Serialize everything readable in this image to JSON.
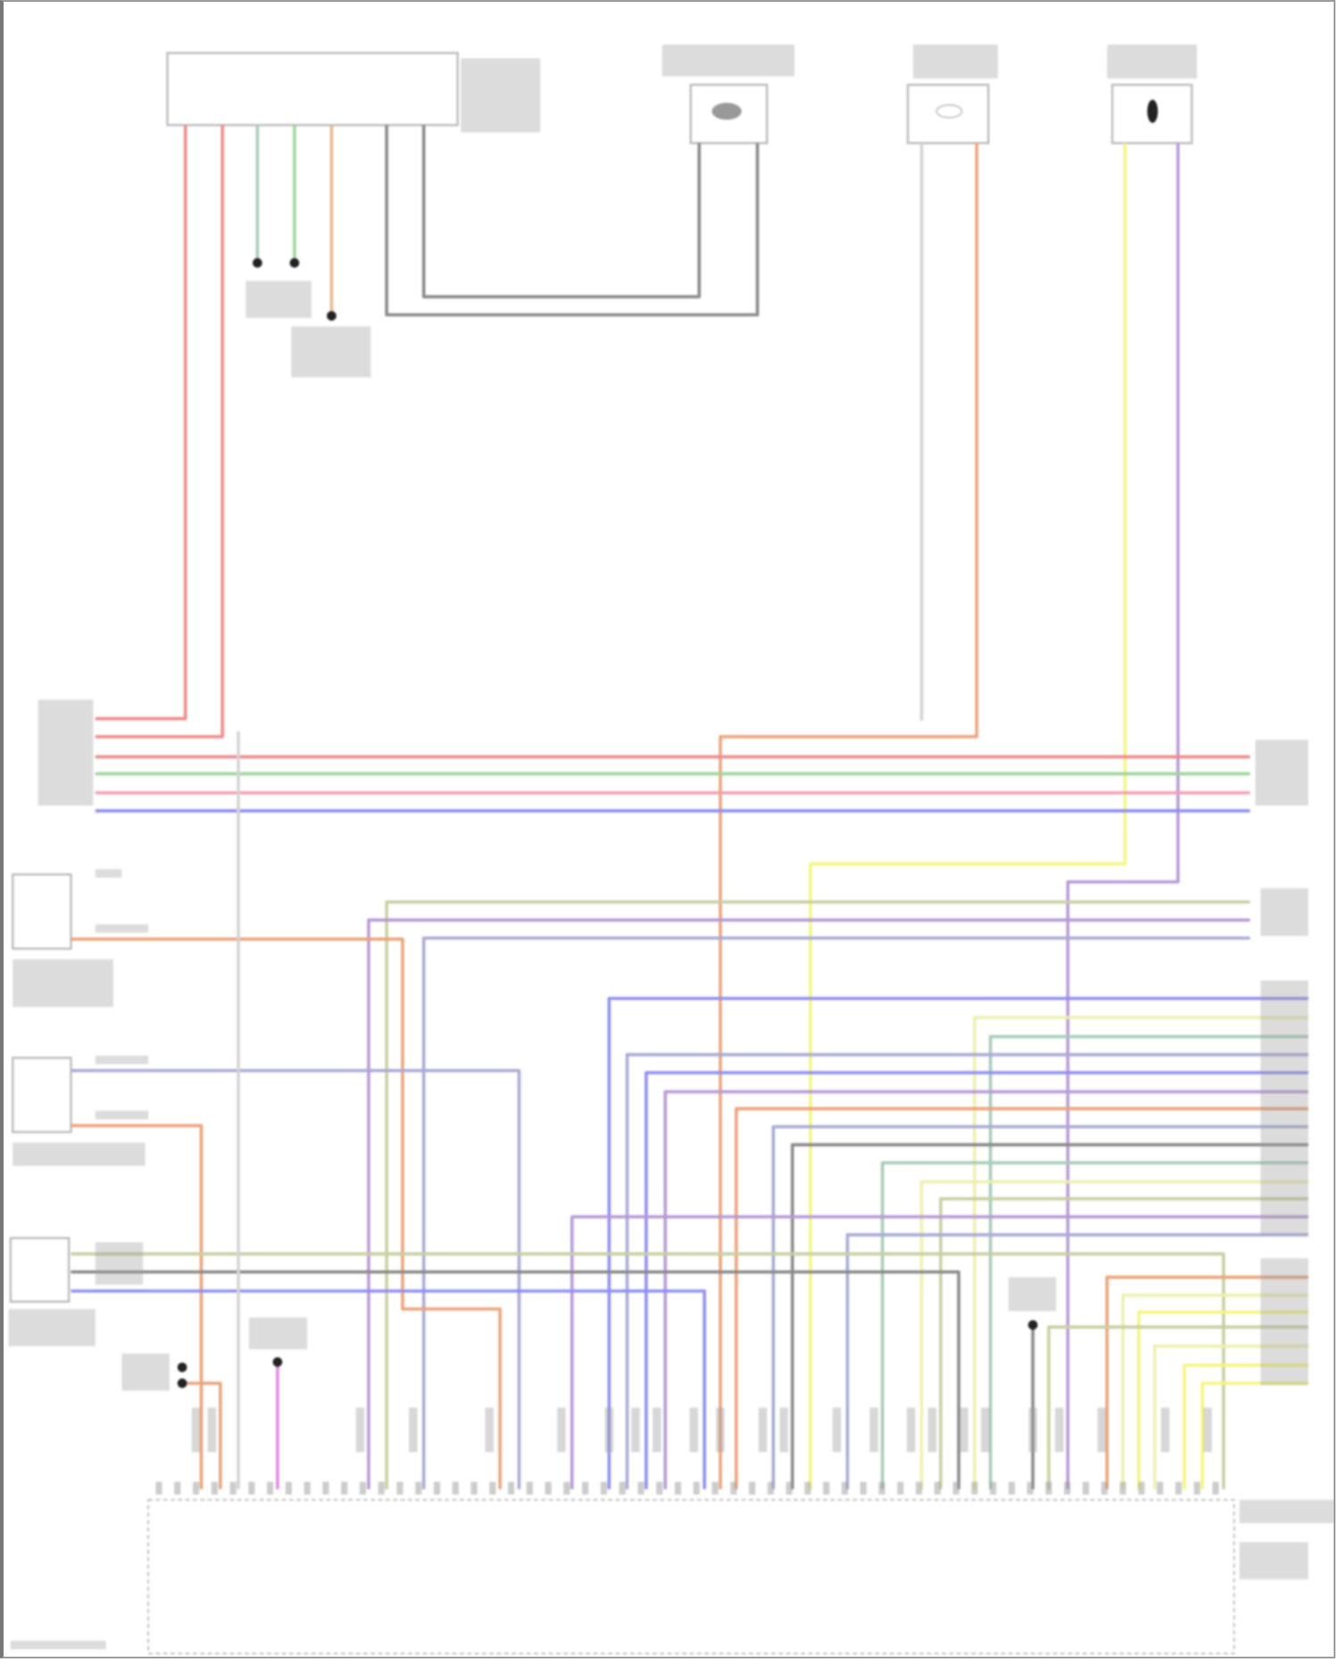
{
  "diagram": {
    "colors": {
      "red": "#f08a8a",
      "pink": "#f3a0b4",
      "green": "#9fd69a",
      "greengray": "#a8ccb8",
      "tan": "#e6b98c",
      "gray": "#8a8a8a",
      "lightgray": "#d4d4d4",
      "orange": "#eba47c",
      "yellow": "#f5f580",
      "paleyellow": "#eef0b0",
      "purple": "#b79ad6",
      "blue": "#8f8ff0",
      "bluegray": "#a9abd6",
      "olive": "#c8d0a0",
      "magenta": "#e08ae0",
      "label": "#9a9a9a"
    }
  }
}
